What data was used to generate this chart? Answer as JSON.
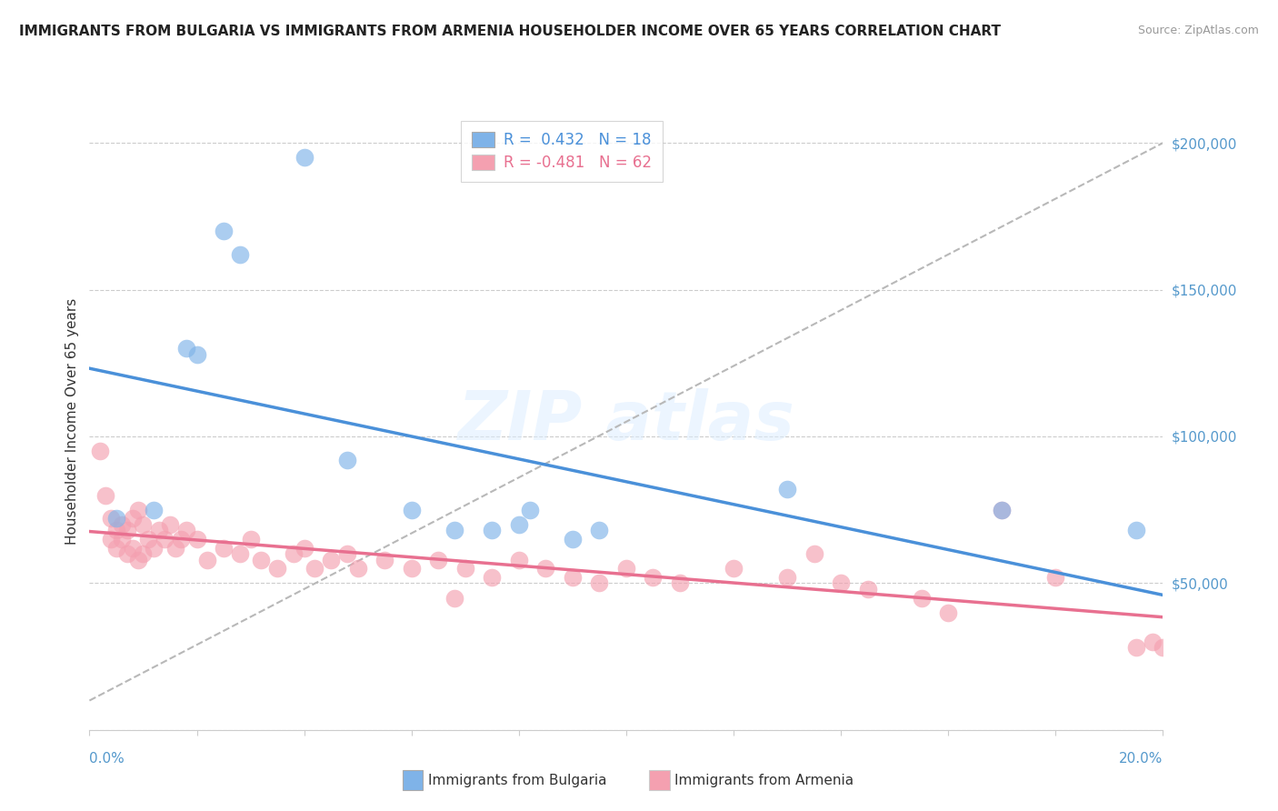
{
  "title": "IMMIGRANTS FROM BULGARIA VS IMMIGRANTS FROM ARMENIA HOUSEHOLDER INCOME OVER 65 YEARS CORRELATION CHART",
  "source": "Source: ZipAtlas.com",
  "ylabel": "Householder Income Over 65 years",
  "xlim": [
    0,
    0.2
  ],
  "ylim": [
    0,
    210000
  ],
  "yticks": [
    0,
    50000,
    100000,
    150000,
    200000
  ],
  "ytick_labels": [
    "",
    "$50,000",
    "$100,000",
    "$150,000",
    "$200,000"
  ],
  "legend1_text": "R =  0.432   N = 18",
  "legend2_text": "R = -0.481   N = 62",
  "legend1_label": "Immigrants from Bulgaria",
  "legend2_label": "Immigrants from Armenia",
  "bulgaria_color": "#7fb3e8",
  "armenia_color": "#f4a0b0",
  "bulgaria_points": [
    [
      0.005,
      72000
    ],
    [
      0.012,
      75000
    ],
    [
      0.018,
      130000
    ],
    [
      0.02,
      128000
    ],
    [
      0.025,
      170000
    ],
    [
      0.028,
      162000
    ],
    [
      0.04,
      195000
    ],
    [
      0.048,
      92000
    ],
    [
      0.06,
      75000
    ],
    [
      0.068,
      68000
    ],
    [
      0.075,
      68000
    ],
    [
      0.08,
      70000
    ],
    [
      0.082,
      75000
    ],
    [
      0.09,
      65000
    ],
    [
      0.095,
      68000
    ],
    [
      0.13,
      82000
    ],
    [
      0.17,
      75000
    ],
    [
      0.195,
      68000
    ]
  ],
  "armenia_points": [
    [
      0.002,
      95000
    ],
    [
      0.003,
      80000
    ],
    [
      0.004,
      72000
    ],
    [
      0.004,
      65000
    ],
    [
      0.005,
      68000
    ],
    [
      0.005,
      62000
    ],
    [
      0.006,
      70000
    ],
    [
      0.006,
      65000
    ],
    [
      0.007,
      68000
    ],
    [
      0.007,
      60000
    ],
    [
      0.008,
      72000
    ],
    [
      0.008,
      62000
    ],
    [
      0.009,
      75000
    ],
    [
      0.009,
      58000
    ],
    [
      0.01,
      70000
    ],
    [
      0.01,
      60000
    ],
    [
      0.011,
      65000
    ],
    [
      0.012,
      62000
    ],
    [
      0.013,
      68000
    ],
    [
      0.014,
      65000
    ],
    [
      0.015,
      70000
    ],
    [
      0.016,
      62000
    ],
    [
      0.017,
      65000
    ],
    [
      0.018,
      68000
    ],
    [
      0.02,
      65000
    ],
    [
      0.022,
      58000
    ],
    [
      0.025,
      62000
    ],
    [
      0.028,
      60000
    ],
    [
      0.03,
      65000
    ],
    [
      0.032,
      58000
    ],
    [
      0.035,
      55000
    ],
    [
      0.038,
      60000
    ],
    [
      0.04,
      62000
    ],
    [
      0.042,
      55000
    ],
    [
      0.045,
      58000
    ],
    [
      0.048,
      60000
    ],
    [
      0.05,
      55000
    ],
    [
      0.055,
      58000
    ],
    [
      0.06,
      55000
    ],
    [
      0.065,
      58000
    ],
    [
      0.068,
      45000
    ],
    [
      0.07,
      55000
    ],
    [
      0.075,
      52000
    ],
    [
      0.08,
      58000
    ],
    [
      0.085,
      55000
    ],
    [
      0.09,
      52000
    ],
    [
      0.095,
      50000
    ],
    [
      0.1,
      55000
    ],
    [
      0.105,
      52000
    ],
    [
      0.11,
      50000
    ],
    [
      0.12,
      55000
    ],
    [
      0.13,
      52000
    ],
    [
      0.135,
      60000
    ],
    [
      0.14,
      50000
    ],
    [
      0.145,
      48000
    ],
    [
      0.155,
      45000
    ],
    [
      0.16,
      40000
    ],
    [
      0.17,
      75000
    ],
    [
      0.18,
      52000
    ],
    [
      0.195,
      28000
    ],
    [
      0.198,
      30000
    ],
    [
      0.2,
      28000
    ]
  ]
}
